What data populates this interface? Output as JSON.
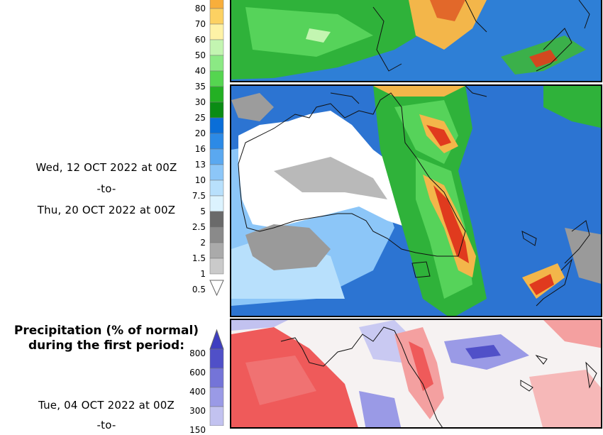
{
  "total_period": {
    "start_label": "Wed, 12 OCT 2022 at 00Z",
    "separator": "-to-",
    "end_label": "Thu, 20 OCT 2022 at 00Z"
  },
  "precip_legend": {
    "ticks": [
      "80",
      "70",
      "60",
      "50",
      "40",
      "35",
      "30",
      "25",
      "20",
      "16",
      "13",
      "10",
      "7.5",
      "5",
      "2.5",
      "2",
      "1.5",
      "1",
      "0.5"
    ],
    "colors": [
      "#f8ae3b",
      "#fcd162",
      "#fef2a6",
      "#c3f5b1",
      "#8be984",
      "#55d550",
      "#23b023",
      "#0a8c14",
      "#0a6ed8",
      "#2c8ae6",
      "#5aa8f0",
      "#8cc6f8",
      "#b8e0fc",
      "#dcf3fe",
      "#6a6a6a",
      "#8a8a8a",
      "#aaaaaa",
      "#cacaca"
    ]
  },
  "percent_section": {
    "title_line1": "Precipitation (% of normal)",
    "title_line2": "during the first period:",
    "ticks": [
      "800",
      "600",
      "400",
      "300",
      "150"
    ],
    "colors": [
      "#5050c8",
      "#7474d8",
      "#9a9ae6",
      "#c2c2f0",
      "#e4e4fa"
    ],
    "start_label": "Tue, 04 OCT 2022 at 00Z",
    "separator": "-to-"
  }
}
